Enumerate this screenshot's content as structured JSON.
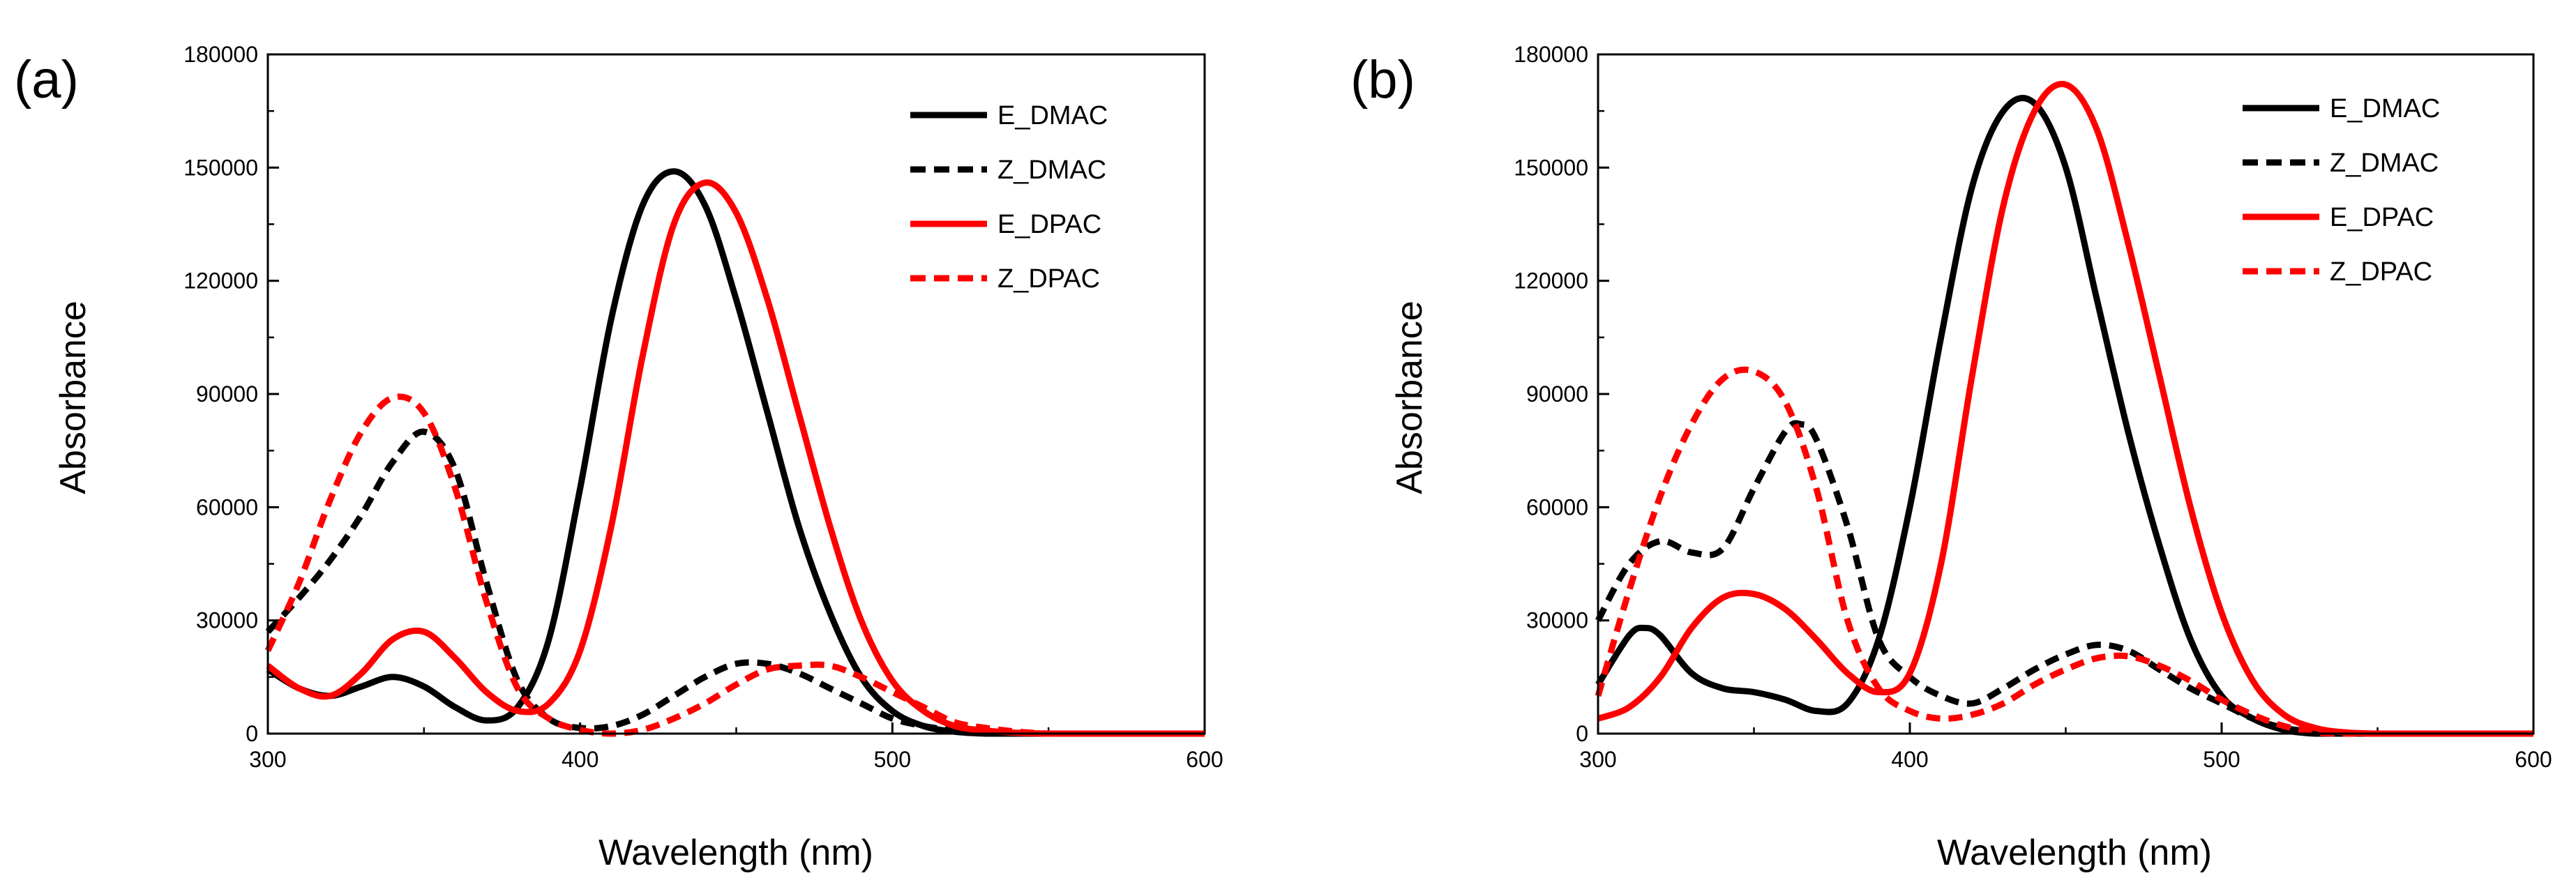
{
  "figure": {
    "panels": [
      {
        "panel_label": "(a)",
        "xlabel": "Wavelength (nm)",
        "ylabel": "Absorbance"
      },
      {
        "panel_label": "(b)",
        "xlabel": "Wavelength (nm)",
        "ylabel": "Absorbance"
      }
    ]
  },
  "chart_data": [
    {
      "type": "line",
      "panel_label": "(a)",
      "title": "",
      "xlabel": "Wavelength (nm)",
      "ylabel": "Absorbance",
      "xlim": [
        300,
        600
      ],
      "ylim": [
        0,
        180000
      ],
      "xticks": [
        300,
        400,
        500,
        600
      ],
      "yticks": [
        0,
        30000,
        60000,
        90000,
        120000,
        150000,
        180000
      ],
      "legend_position": "top-right",
      "grid": false,
      "series": [
        {
          "name": "E_DMAC",
          "color": "#000000",
          "dashed": false,
          "x": [
            300,
            310,
            320,
            330,
            340,
            350,
            360,
            370,
            380,
            390,
            400,
            410,
            420,
            430,
            440,
            450,
            460,
            470,
            480,
            490,
            500,
            510,
            520,
            530,
            540,
            550,
            600
          ],
          "y": [
            17000,
            12000,
            10000,
            12500,
            15000,
            12500,
            7000,
            3500,
            7000,
            25000,
            65000,
            110000,
            140000,
            149000,
            140000,
            115000,
            85000,
            55000,
            32000,
            15000,
            6000,
            2000,
            500,
            0,
            0,
            0,
            0
          ]
        },
        {
          "name": "Z_DMAC",
          "color": "#000000",
          "dashed": true,
          "x": [
            300,
            310,
            320,
            330,
            340,
            350,
            360,
            370,
            380,
            390,
            400,
            410,
            420,
            430,
            440,
            450,
            460,
            470,
            480,
            490,
            500,
            510,
            520,
            530,
            540,
            550,
            600
          ],
          "y": [
            27000,
            36000,
            46000,
            58000,
            72000,
            80000,
            70000,
            40000,
            14000,
            4000,
            1500,
            2000,
            5000,
            10000,
            15000,
            18500,
            18500,
            16000,
            12000,
            8000,
            4000,
            2000,
            800,
            200,
            0,
            0,
            0
          ]
        },
        {
          "name": "E_DPAC",
          "color": "#ff0000",
          "dashed": false,
          "x": [
            300,
            310,
            320,
            330,
            340,
            350,
            360,
            370,
            380,
            390,
            400,
            410,
            420,
            430,
            440,
            450,
            460,
            470,
            480,
            490,
            500,
            510,
            520,
            530,
            540,
            550,
            560,
            600
          ],
          "y": [
            18000,
            12000,
            10000,
            16000,
            25000,
            27000,
            20000,
            11000,
            6000,
            8000,
            22000,
            55000,
            100000,
            135000,
            146000,
            138000,
            115000,
            85000,
            55000,
            30000,
            14000,
            6000,
            2000,
            800,
            200,
            0,
            0,
            0
          ]
        },
        {
          "name": "Z_DPAC",
          "color": "#ff0000",
          "dashed": true,
          "x": [
            300,
            310,
            320,
            330,
            340,
            350,
            360,
            370,
            380,
            390,
            400,
            410,
            420,
            430,
            440,
            450,
            460,
            470,
            480,
            490,
            500,
            510,
            520,
            530,
            540,
            550,
            560,
            600
          ],
          "y": [
            22000,
            40000,
            62000,
            80000,
            89000,
            85000,
            65000,
            35000,
            12000,
            4000,
            1000,
            0,
            1000,
            4000,
            8000,
            13000,
            17000,
            18000,
            18000,
            15000,
            11000,
            7000,
            3000,
            1500,
            500,
            0,
            0,
            0
          ]
        }
      ]
    },
    {
      "type": "line",
      "panel_label": "(b)",
      "title": "",
      "xlabel": "Wavelength (nm)",
      "ylabel": "Absorbance",
      "xlim": [
        300,
        600
      ],
      "ylim": [
        0,
        180000
      ],
      "xticks": [
        300,
        400,
        500,
        600
      ],
      "yticks": [
        0,
        30000,
        60000,
        90000,
        120000,
        150000,
        180000
      ],
      "legend_position": "top-right",
      "grid": false,
      "series": [
        {
          "name": "E_DMAC",
          "color": "#000000",
          "dashed": false,
          "x": [
            300,
            310,
            315,
            320,
            330,
            340,
            350,
            360,
            370,
            380,
            390,
            400,
            410,
            420,
            430,
            440,
            450,
            460,
            470,
            480,
            490,
            500,
            510,
            520,
            530,
            540,
            600
          ],
          "y": [
            13000,
            26000,
            28000,
            26000,
            16000,
            12000,
            11000,
            9000,
            6000,
            8000,
            25000,
            60000,
            105000,
            145000,
            165000,
            167000,
            150000,
            115000,
            80000,
            50000,
            25000,
            10000,
            4000,
            1000,
            0,
            0,
            0
          ]
        },
        {
          "name": "Z_DMAC",
          "color": "#000000",
          "dashed": true,
          "x": [
            300,
            310,
            320,
            330,
            340,
            350,
            360,
            365,
            370,
            380,
            390,
            400,
            410,
            420,
            430,
            440,
            450,
            460,
            470,
            480,
            490,
            500,
            510,
            520,
            530,
            540,
            600
          ],
          "y": [
            30000,
            45000,
            51000,
            48000,
            49000,
            65000,
            80000,
            82000,
            78000,
            55000,
            25000,
            15000,
            10000,
            8000,
            12000,
            17000,
            21000,
            23500,
            22000,
            17000,
            12000,
            8000,
            4000,
            1500,
            500,
            0,
            0
          ]
        },
        {
          "name": "E_DPAC",
          "color": "#ff0000",
          "dashed": false,
          "x": [
            300,
            310,
            320,
            330,
            340,
            350,
            360,
            370,
            380,
            390,
            400,
            410,
            420,
            430,
            440,
            450,
            460,
            470,
            480,
            490,
            500,
            510,
            520,
            530,
            540,
            550,
            560,
            600
          ],
          "y": [
            4000,
            7000,
            15000,
            28000,
            36000,
            37000,
            33000,
            25000,
            16000,
            11000,
            16000,
            45000,
            95000,
            140000,
            165000,
            172000,
            160000,
            130000,
            95000,
            60000,
            32000,
            14000,
            5000,
            1500,
            300,
            0,
            0,
            0
          ]
        },
        {
          "name": "Z_DPAC",
          "color": "#ff0000",
          "dashed": true,
          "x": [
            300,
            310,
            320,
            330,
            340,
            350,
            360,
            370,
            380,
            390,
            400,
            410,
            420,
            430,
            440,
            450,
            460,
            470,
            480,
            490,
            500,
            510,
            520,
            530,
            540,
            600
          ],
          "y": [
            10000,
            38000,
            63000,
            82000,
            94000,
            96000,
            88000,
            65000,
            30000,
            12000,
            6000,
            4000,
            5000,
            8000,
            13000,
            17000,
            20000,
            20500,
            18000,
            14000,
            9000,
            5000,
            2000,
            500,
            0,
            0
          ]
        }
      ]
    }
  ]
}
